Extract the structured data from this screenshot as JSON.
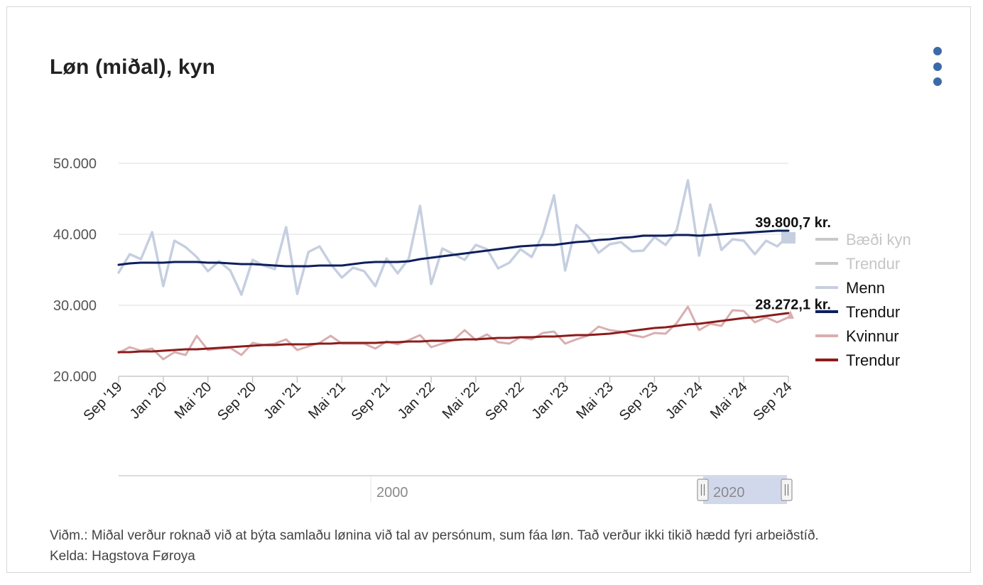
{
  "title": "Løn (miðal), kyn",
  "footer": {
    "note": "Viðm.: Miðal verður roknað við at býta samlaðu lønina við tal av persónum, sum fáa løn. Tað verður ikki tikið hædd fyri arbeiðstíð.",
    "source": "Kelda: Hagstova Føroya"
  },
  "navigator": {
    "labels": [
      "2000",
      "2020"
    ]
  },
  "chart_data": {
    "type": "line",
    "x_start": "2019-09",
    "x_end": "2024-09",
    "x_tick_labels": [
      "Sep '19",
      "Jan '20",
      "Mai '20",
      "Sep '20",
      "Jan '21",
      "Mai '21",
      "Sep '21",
      "Jan '22",
      "Mai '22",
      "Sep '22",
      "Jan '23",
      "Mai '23",
      "Sep '23",
      "Jan '24",
      "Mai '24",
      "Sep '24"
    ],
    "y_ticks": [
      20000,
      30000,
      40000,
      50000
    ],
    "y_tick_labels": [
      "20.000",
      "30.000",
      "40.000",
      "50.000"
    ],
    "ylim": [
      20000,
      50000
    ],
    "grid": true,
    "legend_position": "right",
    "legend": [
      {
        "label": "Bæði kyn",
        "color": "#c8c8c8",
        "visible": false
      },
      {
        "label": "Trendur",
        "color": "#c8c8c8",
        "visible": false
      },
      {
        "label": "Menn",
        "color": "#c6cfe0",
        "visible": true
      },
      {
        "label": "Trendur",
        "color": "#0d1f5c",
        "visible": true
      },
      {
        "label": "Kvinnur",
        "color": "#d9aeb0",
        "visible": true
      },
      {
        "label": "Trendur",
        "color": "#8b1c1c",
        "visible": true
      }
    ],
    "end_labels": [
      {
        "text": "39.800,7 kr.",
        "value": 39800.7
      },
      {
        "text": "28.272,1 kr.",
        "value": 28272.1
      }
    ],
    "series": [
      {
        "name": "Menn",
        "color": "#c6cfe0",
        "values": [
          34600,
          37200,
          36500,
          40300,
          32700,
          39100,
          38200,
          36800,
          34800,
          36200,
          34900,
          31500,
          36400,
          35600,
          35100,
          41000,
          31600,
          37500,
          38300,
          35800,
          33900,
          35300,
          34800,
          32700,
          36600,
          34500,
          36600,
          44000,
          33000,
          38000,
          37200,
          36400,
          38500,
          37900,
          35200,
          36000,
          37900,
          36800,
          40000,
          45500,
          34900,
          41300,
          39800,
          37400,
          38600,
          38900,
          37600,
          37700,
          39600,
          38500,
          40600,
          47600,
          37000,
          44200,
          37800,
          39300,
          39100,
          37200,
          39100,
          38300,
          39800
        ]
      },
      {
        "name": "Trendur",
        "color": "#0d1f5c",
        "values": [
          35700,
          35900,
          36000,
          36000,
          36000,
          36100,
          36100,
          36100,
          36000,
          36000,
          35900,
          35800,
          35800,
          35700,
          35600,
          35500,
          35500,
          35500,
          35600,
          35600,
          35600,
          35800,
          36000,
          36100,
          36100,
          36100,
          36200,
          36500,
          36700,
          36900,
          37100,
          37300,
          37500,
          37700,
          37900,
          38100,
          38300,
          38400,
          38500,
          38500,
          38700,
          38900,
          39000,
          39200,
          39300,
          39500,
          39600,
          39800,
          39800,
          39800,
          39900,
          39900,
          39800,
          39900,
          40000,
          40100,
          40200,
          40300,
          40400,
          40500,
          40500
        ]
      },
      {
        "name": "Kvinnur",
        "color": "#d9aeb0",
        "values": [
          23300,
          24100,
          23600,
          23900,
          22400,
          23400,
          23000,
          25700,
          23700,
          23900,
          24000,
          23000,
          24700,
          24400,
          24600,
          25200,
          23700,
          24200,
          24700,
          25700,
          24600,
          24600,
          24600,
          23900,
          24900,
          24500,
          25100,
          25800,
          24100,
          24600,
          25100,
          26500,
          25100,
          25900,
          24800,
          24600,
          25500,
          25200,
          26100,
          26300,
          24600,
          25200,
          25700,
          27000,
          26500,
          26300,
          25800,
          25500,
          26100,
          26000,
          27500,
          29800,
          26500,
          27400,
          27100,
          29300,
          29200,
          27600,
          28300,
          27600,
          28300
        ]
      },
      {
        "name": "Trendur",
        "color": "#8b1c1c",
        "values": [
          23400,
          23400,
          23500,
          23500,
          23600,
          23700,
          23800,
          23800,
          23900,
          24000,
          24100,
          24200,
          24300,
          24400,
          24400,
          24500,
          24500,
          24500,
          24600,
          24600,
          24700,
          24700,
          24700,
          24700,
          24800,
          24800,
          24900,
          24900,
          25000,
          25000,
          25100,
          25200,
          25200,
          25300,
          25400,
          25400,
          25500,
          25500,
          25600,
          25600,
          25700,
          25800,
          25800,
          25900,
          26000,
          26200,
          26400,
          26600,
          26800,
          26900,
          27100,
          27300,
          27400,
          27600,
          27800,
          28000,
          28200,
          28300,
          28500,
          28700,
          28900
        ]
      }
    ]
  }
}
